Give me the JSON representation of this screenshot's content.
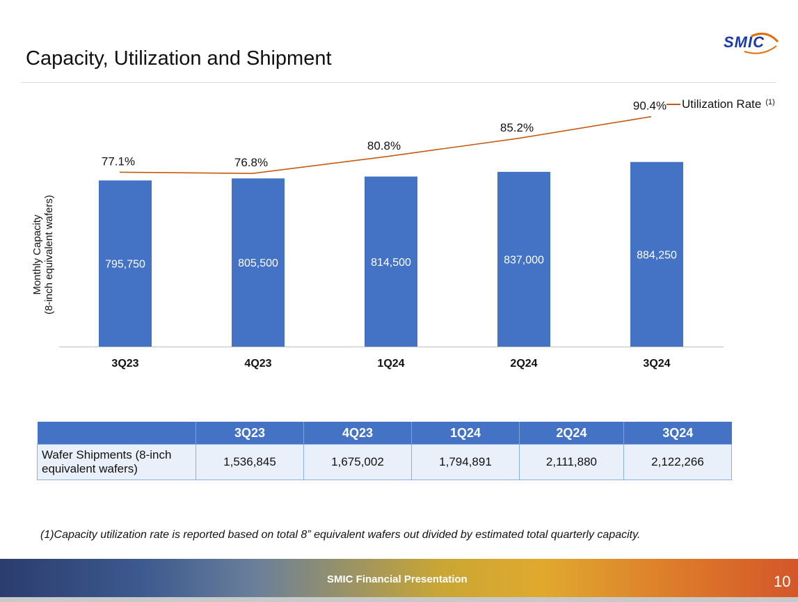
{
  "title": "Capacity, Utilization and Shipment",
  "logo": {
    "text": "SMIC",
    "color": "#1a3aa8",
    "accent": "#e36c0a"
  },
  "chart_data": {
    "type": "bar",
    "categories": [
      "3Q23",
      "4Q23",
      "1Q24",
      "2Q24",
      "3Q24"
    ],
    "series": [
      {
        "name": "Monthly Capacity",
        "values": [
          795750,
          805500,
          814500,
          837000,
          884250
        ],
        "labels": [
          "795,750",
          "805,500",
          "814,500",
          "837,000",
          "884,250"
        ],
        "color": "#4472c4"
      },
      {
        "name": "Utilization Rate",
        "type": "line",
        "values": [
          77.1,
          76.8,
          80.8,
          85.2,
          90.4
        ],
        "labels": [
          "77.1%",
          "76.8%",
          "80.8%",
          "85.2%",
          "90.4%"
        ],
        "color": "#c55a11"
      }
    ],
    "ylabel_line1": "Monthly Capacity",
    "ylabel_line2": "(8-inch equivalent wafers)",
    "ylim": [
      0,
      1000000
    ],
    "util_range": [
      65,
      100
    ],
    "legend": {
      "label": "Utilization Rate",
      "note": "(1)",
      "position": "top-right"
    }
  },
  "table": {
    "headers": [
      "",
      "3Q23",
      "4Q23",
      "1Q24",
      "2Q24",
      "3Q24"
    ],
    "row_label": "Wafer Shipments (8-inch equivalent wafers)",
    "values": [
      "1,536,845",
      "1,675,002",
      "1,794,891",
      "2,111,880",
      "2,122,266"
    ]
  },
  "footnote": "(1)Capacity utilization rate is reported based on total 8” equivalent wafers out divided by estimated total quarterly capacity.",
  "footer": {
    "text": "SMIC Financial Presentation",
    "page": "10"
  }
}
